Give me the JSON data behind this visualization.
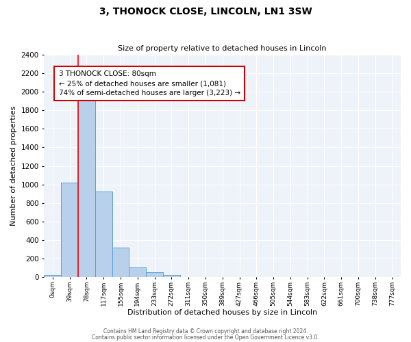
{
  "title": "3, THONOCK CLOSE, LINCOLN, LN1 3SW",
  "subtitle": "Size of property relative to detached houses in Lincoln",
  "xlabel": "Distribution of detached houses by size in Lincoln",
  "ylabel": "Number of detached properties",
  "bar_labels": [
    "0sqm",
    "39sqm",
    "78sqm",
    "117sqm",
    "155sqm",
    "194sqm",
    "233sqm",
    "272sqm",
    "311sqm",
    "350sqm",
    "389sqm",
    "427sqm",
    "466sqm",
    "505sqm",
    "544sqm",
    "583sqm",
    "622sqm",
    "661sqm",
    "700sqm",
    "738sqm",
    "777sqm"
  ],
  "bar_values": [
    20,
    1020,
    1920,
    920,
    320,
    100,
    50,
    20,
    0,
    0,
    0,
    0,
    0,
    0,
    0,
    0,
    0,
    0,
    0,
    0,
    0
  ],
  "bar_color": "#b8d0ea",
  "bar_edge_color": "#5a9fd4",
  "background_color": "#eef2f9",
  "grid_color": "#ffffff",
  "ylim": [
    0,
    2400
  ],
  "yticks": [
    0,
    200,
    400,
    600,
    800,
    1000,
    1200,
    1400,
    1600,
    1800,
    2000,
    2200,
    2400
  ],
  "red_line_index": 2,
  "annotation_line1": "3 THONOCK CLOSE: 80sqm",
  "annotation_line2": "← 25% of detached houses are smaller (1,081)",
  "annotation_line3": "74% of semi-detached houses are larger (3,223) →",
  "annotation_box_color": "#ffffff",
  "annotation_box_edge": "#cc0000",
  "footer_line1": "Contains HM Land Registry data © Crown copyright and database right 2024.",
  "footer_line2": "Contains public sector information licensed under the Open Government Licence v3.0."
}
